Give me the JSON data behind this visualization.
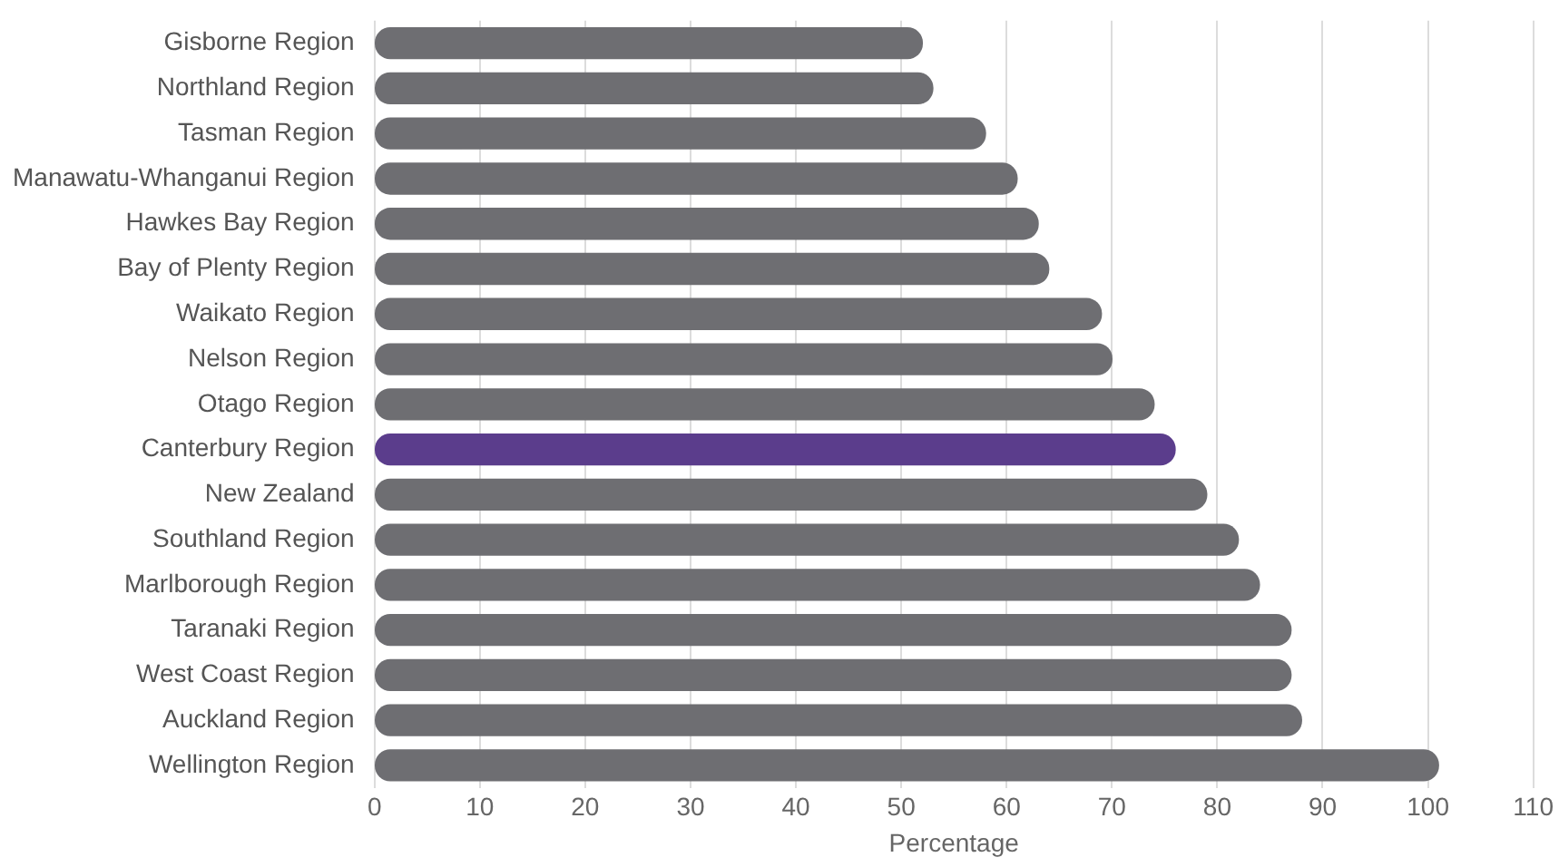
{
  "chart_data": {
    "type": "bar",
    "orientation": "horizontal",
    "xlabel": "Percentage",
    "categories": [
      "Gisborne Region",
      "Northland Region",
      "Tasman Region",
      "Manawatu-Whanganui Region",
      "Hawkes Bay Region",
      "Bay of Plenty Region",
      "Waikato Region",
      "Nelson Region",
      "Otago Region",
      "Canterbury Region",
      "New Zealand",
      "Southland Region",
      "Marlborough Region",
      "Taranaki Region",
      "West Coast Region",
      "Auckland Region",
      "Wellington Region"
    ],
    "values": [
      52,
      53,
      58,
      61,
      63,
      64,
      69,
      70,
      74,
      76,
      79,
      82,
      84,
      87,
      87,
      88,
      101
    ],
    "colors": [
      "#6e6e72",
      "#6e6e72",
      "#6e6e72",
      "#6e6e72",
      "#6e6e72",
      "#6e6e72",
      "#6e6e72",
      "#6e6e72",
      "#6e6e72",
      "#5b3d8c",
      "#6e6e72",
      "#6e6e72",
      "#6e6e72",
      "#6e6e72",
      "#6e6e72",
      "#6e6e72",
      "#6e6e72"
    ],
    "xlim": [
      0,
      110
    ],
    "xticks": [
      0,
      10,
      20,
      30,
      40,
      50,
      60,
      70,
      80,
      90,
      100,
      110
    ],
    "grid": "x"
  }
}
